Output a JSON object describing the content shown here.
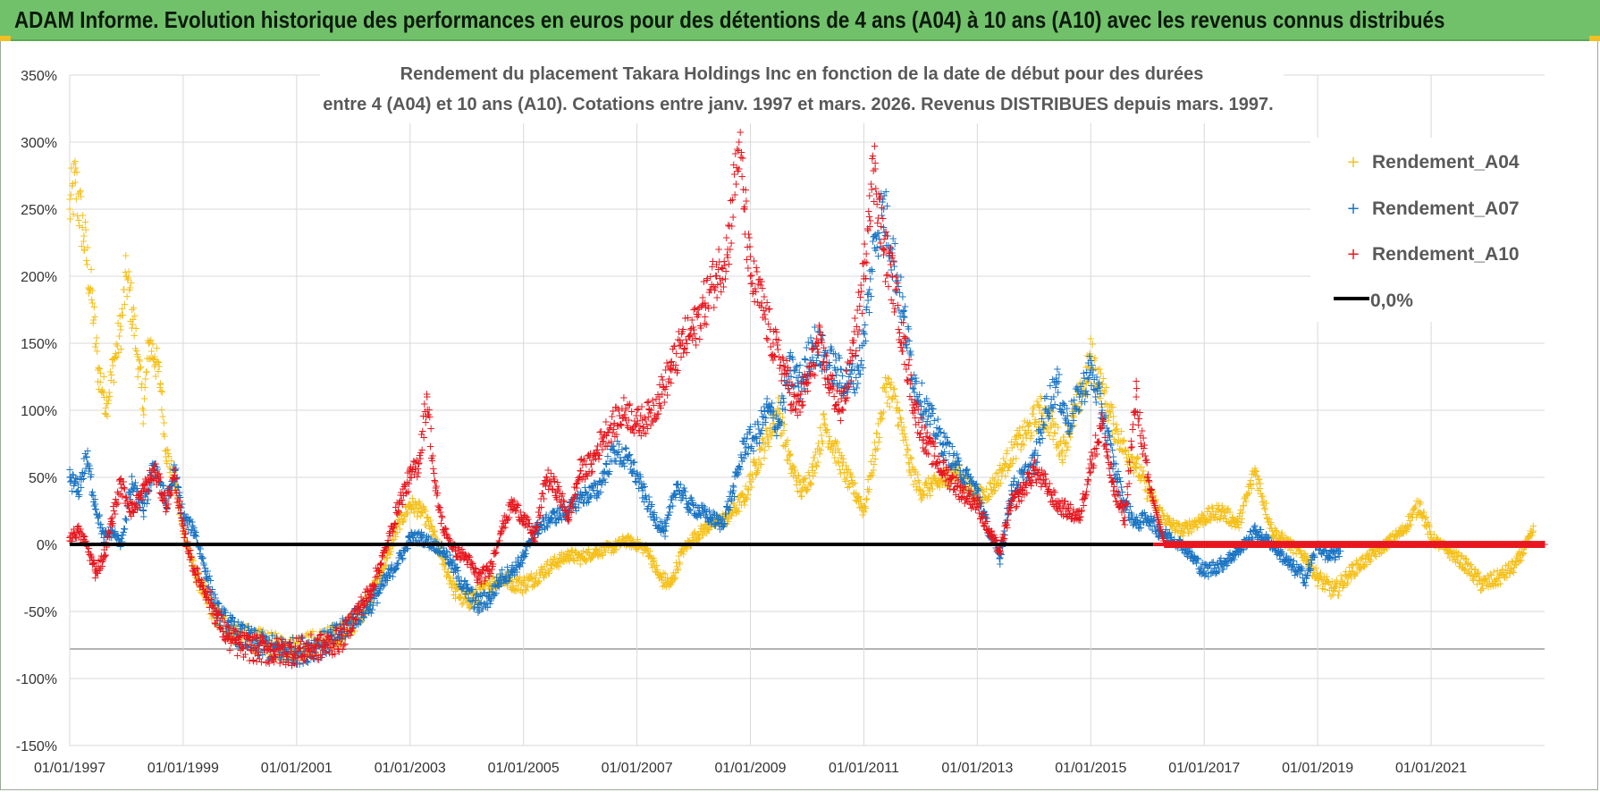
{
  "header": {
    "title": "ADAM Informe. Evolution historique des performances en euros pour des détentions de 4 ans (A04) à 10 ans (A10) avec les revenus connus distribués"
  },
  "colors": {
    "banner": "#71c16b",
    "A04": "#f5c11c",
    "A07": "#1b75c4",
    "A10": "#e8171f",
    "zero": "#000000",
    "grid": "#d9d9d9"
  },
  "chart_data": {
    "type": "scatter",
    "title_lines": [
      "Rendement du placement Takara Holdings Inc en fonction de la date de début pour des durées",
      "entre 4 (A04) et 10 ans (A10).  Cotations entre janv. 1997 et mars. 2026. Revenus DISTRIBUES depuis mars. 1997."
    ],
    "x_range": [
      1997.0,
      2023.0
    ],
    "ylim": [
      -150,
      350
    ],
    "y_ticks": [
      350,
      300,
      250,
      200,
      150,
      100,
      50,
      0,
      -50,
      -100,
      -150
    ],
    "y_tick_labels": [
      "350%",
      "300%",
      "250%",
      "200%",
      "150%",
      "100%",
      "50%",
      "0%",
      "-50%",
      "-100%",
      "-150%"
    ],
    "x_ticks": [
      1997,
      1999,
      2001,
      2003,
      2005,
      2007,
      2009,
      2011,
      2013,
      2015,
      2017,
      2019,
      2021
    ],
    "x_tick_labels": [
      "01/01/1997",
      "01/01/1999",
      "01/01/2001",
      "01/01/2003",
      "01/01/2005",
      "01/01/2007",
      "01/01/2009",
      "01/01/2011",
      "01/01/2013",
      "01/01/2015",
      "01/01/2017",
      "01/01/2019",
      "01/01/2021"
    ],
    "legend": [
      "Rendement_A04",
      "Rendement_A07",
      "Rendement_A10",
      "0,0%"
    ],
    "series": [
      {
        "name": "Rendement_A04",
        "x": [
          1997.0,
          1997.1,
          1997.25,
          1997.4,
          1997.5,
          1997.65,
          1997.8,
          1997.9,
          1998.0,
          1998.1,
          1998.2,
          1998.3,
          1998.4,
          1998.5,
          1998.6,
          1998.7,
          1998.85,
          1999.0,
          1999.2,
          1999.4,
          1999.6,
          1999.8,
          2000.0,
          2000.3,
          2000.6,
          2000.9,
          2001.2,
          2001.5,
          2001.8,
          2002.0,
          2002.3,
          2002.6,
          2002.8,
          2003.0,
          2003.2,
          2003.4,
          2003.6,
          2003.8,
          2004.0,
          2004.2,
          2004.4,
          2004.6,
          2004.8,
          2005.0,
          2005.2,
          2005.5,
          2005.8,
          2006.0,
          2006.3,
          2006.6,
          2006.8,
          2007.0,
          2007.2,
          2007.4,
          2007.6,
          2007.8,
          2008.0,
          2008.3,
          2008.6,
          2008.9,
          2009.1,
          2009.3,
          2009.5,
          2009.7,
          2009.9,
          2010.1,
          2010.3,
          2010.5,
          2010.7,
          2010.9,
          2011.0,
          2011.2,
          2011.4,
          2011.6,
          2011.8,
          2012.0,
          2012.3,
          2012.6,
          2012.9,
          2013.1,
          2013.3,
          2013.5,
          2013.7,
          2013.9,
          2014.1,
          2014.3,
          2014.5,
          2014.7,
          2014.9,
          2015.0,
          2015.2,
          2015.4,
          2015.6,
          2015.8,
          2016.0,
          2016.2,
          2016.4,
          2016.6,
          2016.8,
          2017.0,
          2017.3,
          2017.6,
          2017.9,
          2018.2,
          2018.5,
          2018.8,
          2019.0,
          2019.3,
          2019.6,
          2019.9,
          2020.2,
          2020.5,
          2020.8,
          2021.0,
          2021.3,
          2021.6,
          2021.9,
          2022.2,
          2022.5,
          2022.8
        ],
        "values": [
          250,
          270,
          230,
          180,
          130,
          105,
          140,
          160,
          200,
          175,
          140,
          100,
          150,
          140,
          120,
          70,
          45,
          10,
          -20,
          -40,
          -55,
          -62,
          -68,
          -72,
          -76,
          -78,
          -75,
          -72,
          -66,
          -58,
          -40,
          -10,
          15,
          30,
          25,
          10,
          -15,
          -35,
          -42,
          -38,
          -30,
          -25,
          -28,
          -30,
          -25,
          -15,
          -8,
          -10,
          -5,
          -2,
          3,
          0,
          -5,
          -25,
          -30,
          -5,
          5,
          15,
          20,
          35,
          60,
          80,
          100,
          60,
          40,
          55,
          90,
          70,
          50,
          35,
          25,
          70,
          120,
          100,
          60,
          40,
          45,
          55,
          40,
          35,
          45,
          60,
          75,
          85,
          100,
          90,
          70,
          95,
          120,
          140,
          115,
          90,
          70,
          60,
          40,
          25,
          15,
          10,
          15,
          20,
          25,
          15,
          55,
          10,
          0,
          -10,
          -25,
          -35,
          -20,
          -10,
          0,
          10,
          30,
          5,
          -5,
          -15,
          -30,
          -25,
          -15,
          10
        ]
      },
      {
        "name": "Rendement_A07",
        "x": [
          1997.0,
          1997.15,
          1997.3,
          1997.45,
          1997.6,
          1997.75,
          1997.9,
          1998.1,
          1998.3,
          1998.5,
          1998.7,
          1998.85,
          1999.0,
          1999.2,
          1999.4,
          1999.6,
          1999.8,
          2000.0,
          2000.3,
          2000.6,
          2000.9,
          2001.2,
          2001.5,
          2001.8,
          2002.0,
          2002.3,
          2002.6,
          2002.9,
          2003.0,
          2003.2,
          2003.4,
          2003.6,
          2003.8,
          2004.0,
          2004.2,
          2004.4,
          2004.6,
          2004.8,
          2005.0,
          2005.2,
          2005.5,
          2005.8,
          2006.0,
          2006.3,
          2006.6,
          2006.9,
          2007.1,
          2007.3,
          2007.5,
          2007.7,
          2007.9,
          2008.1,
          2008.3,
          2008.5,
          2008.7,
          2008.9,
          2009.1,
          2009.3,
          2009.5,
          2009.7,
          2009.9,
          2010.1,
          2010.3,
          2010.5,
          2010.7,
          2010.9,
          2011.0,
          2011.1,
          2011.2,
          2011.35,
          2011.5,
          2011.7,
          2011.9,
          2012.1,
          2012.4,
          2012.7,
          2013.0,
          2013.2,
          2013.4,
          2013.6,
          2013.8,
          2014.0,
          2014.2,
          2014.4,
          2014.6,
          2014.8,
          2015.0,
          2015.2,
          2015.4,
          2015.6,
          2015.8,
          2016.0,
          2016.2,
          2016.4,
          2016.6,
          2016.8,
          2017.0,
          2017.3,
          2017.6,
          2017.9,
          2018.2,
          2018.5,
          2018.8,
          2019.0,
          2019.2,
          2019.4
        ],
        "values": [
          50,
          40,
          65,
          30,
          5,
          10,
          0,
          45,
          25,
          60,
          30,
          55,
          20,
          10,
          -20,
          -50,
          -60,
          -68,
          -74,
          -78,
          -80,
          -78,
          -74,
          -65,
          -55,
          -45,
          -25,
          -5,
          5,
          5,
          0,
          -5,
          -20,
          -35,
          -45,
          -40,
          -25,
          -20,
          -10,
          10,
          20,
          25,
          35,
          40,
          70,
          60,
          40,
          20,
          10,
          45,
          30,
          25,
          20,
          15,
          40,
          75,
          80,
          100,
          90,
          130,
          120,
          150,
          140,
          130,
          120,
          130,
          150,
          190,
          230,
          250,
          220,
          170,
          120,
          100,
          75,
          55,
          40,
          10,
          -10,
          40,
          50,
          60,
          100,
          120,
          90,
          110,
          130,
          100,
          60,
          30,
          15,
          20,
          10,
          5,
          0,
          -10,
          -20,
          -15,
          -5,
          10,
          0,
          -15,
          -25,
          0,
          -10,
          -5
        ]
      },
      {
        "name": "Rendement_A10",
        "x": [
          1997.0,
          1997.15,
          1997.3,
          1997.45,
          1997.6,
          1997.75,
          1997.9,
          1998.1,
          1998.3,
          1998.5,
          1998.7,
          1998.85,
          1999.0,
          1999.2,
          1999.4,
          1999.6,
          1999.8,
          2000.0,
          2000.3,
          2000.6,
          2000.9,
          2001.2,
          2001.5,
          2001.8,
          2002.0,
          2002.3,
          2002.6,
          2002.8,
          2003.0,
          2003.15,
          2003.3,
          2003.45,
          2003.6,
          2003.8,
          2004.0,
          2004.2,
          2004.4,
          2004.6,
          2004.8,
          2005.0,
          2005.2,
          2005.4,
          2005.6,
          2005.8,
          2006.0,
          2006.2,
          2006.4,
          2006.6,
          2006.8,
          2007.0,
          2007.2,
          2007.4,
          2007.6,
          2007.8,
          2008.0,
          2008.2,
          2008.4,
          2008.6,
          2008.8,
          2008.9,
          2009.0,
          2009.2,
          2009.4,
          2009.6,
          2009.8,
          2010.0,
          2010.2,
          2010.4,
          2010.6,
          2010.8,
          2011.0,
          2011.1,
          2011.2,
          2011.35,
          2011.5,
          2011.7,
          2011.9,
          2012.1,
          2012.4,
          2012.7,
          2013.0,
          2013.2,
          2013.4,
          2013.6,
          2013.8,
          2014.0,
          2014.2,
          2014.4,
          2014.6,
          2014.8,
          2015.0,
          2015.2,
          2015.4,
          2015.6,
          2015.8,
          2016.0,
          2016.3,
          2016.6,
          2017.0,
          2017.5,
          2018.0,
          2018.5,
          2019.0,
          2019.5,
          2020.0,
          2020.5,
          2021.0,
          2021.5,
          2022.0,
          2022.5,
          2023.0
        ],
        "values": [
          5,
          10,
          0,
          -20,
          -10,
          20,
          45,
          25,
          40,
          55,
          30,
          50,
          10,
          -20,
          -35,
          -55,
          -70,
          -75,
          -78,
          -80,
          -80,
          -78,
          -76,
          -70,
          -55,
          -35,
          0,
          30,
          50,
          60,
          110,
          40,
          10,
          -5,
          -10,
          -25,
          -20,
          10,
          30,
          20,
          5,
          50,
          40,
          20,
          55,
          60,
          80,
          90,
          100,
          90,
          95,
          110,
          130,
          150,
          160,
          180,
          200,
          220,
          300,
          250,
          200,
          180,
          150,
          130,
          100,
          120,
          150,
          120,
          100,
          140,
          200,
          260,
          280,
          220,
          200,
          150,
          100,
          75,
          55,
          40,
          30,
          10,
          -5,
          30,
          40,
          55,
          45,
          30,
          25,
          20,
          60,
          90,
          40,
          20,
          110,
          50,
          0,
          0,
          0,
          0,
          0,
          0,
          0,
          0,
          0,
          0,
          0,
          0,
          0,
          0,
          0
        ]
      }
    ]
  }
}
